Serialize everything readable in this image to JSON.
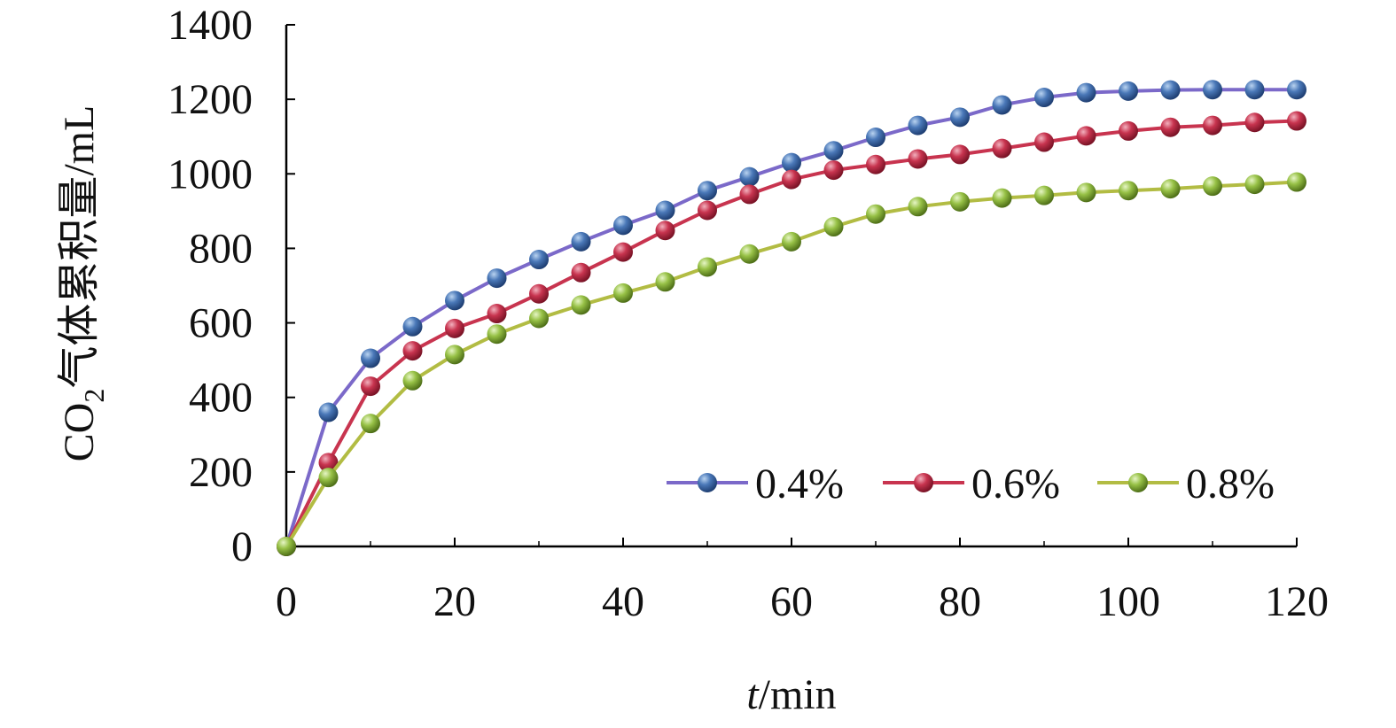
{
  "chart_data": {
    "type": "line",
    "xlabel_italic": "t",
    "xlabel_unit": "/min",
    "ylabel_prefix": "CO",
    "ylabel_subscript": "2",
    "ylabel_rest": "气体累积量/mL",
    "xlim": [
      0,
      120
    ],
    "ylim": [
      0,
      1400
    ],
    "xticks": [
      0,
      20,
      40,
      60,
      80,
      100,
      120
    ],
    "yticks": [
      0,
      200,
      400,
      600,
      800,
      1000,
      1200,
      1400
    ],
    "grid": false,
    "legend_position": "lower-right",
    "x": [
      0,
      5,
      10,
      15,
      20,
      25,
      30,
      35,
      40,
      45,
      50,
      55,
      60,
      65,
      70,
      75,
      80,
      85,
      90,
      95,
      100,
      105,
      110,
      115,
      120
    ],
    "series": [
      {
        "name": "0.4%",
        "color": "#4a78b8",
        "line_color": "#7b69c9",
        "values": [
          0,
          360,
          505,
          590,
          660,
          720,
          770,
          818,
          862,
          902,
          955,
          992,
          1030,
          1062,
          1098,
          1130,
          1152,
          1185,
          1205,
          1218,
          1222,
          1225,
          1226,
          1226,
          1226
        ]
      },
      {
        "name": "0.6%",
        "color": "#c8344f",
        "line_color": "#c8344f",
        "values": [
          0,
          225,
          430,
          525,
          585,
          625,
          678,
          735,
          790,
          848,
          902,
          945,
          985,
          1010,
          1025,
          1040,
          1052,
          1068,
          1085,
          1102,
          1115,
          1125,
          1130,
          1138,
          1142
        ]
      },
      {
        "name": "0.8%",
        "color": "#97c146",
        "line_color": "#b2bc43",
        "values": [
          0,
          185,
          330,
          445,
          515,
          570,
          612,
          648,
          680,
          710,
          750,
          785,
          818,
          858,
          892,
          912,
          925,
          935,
          942,
          950,
          955,
          960,
          967,
          972,
          978
        ]
      }
    ]
  }
}
